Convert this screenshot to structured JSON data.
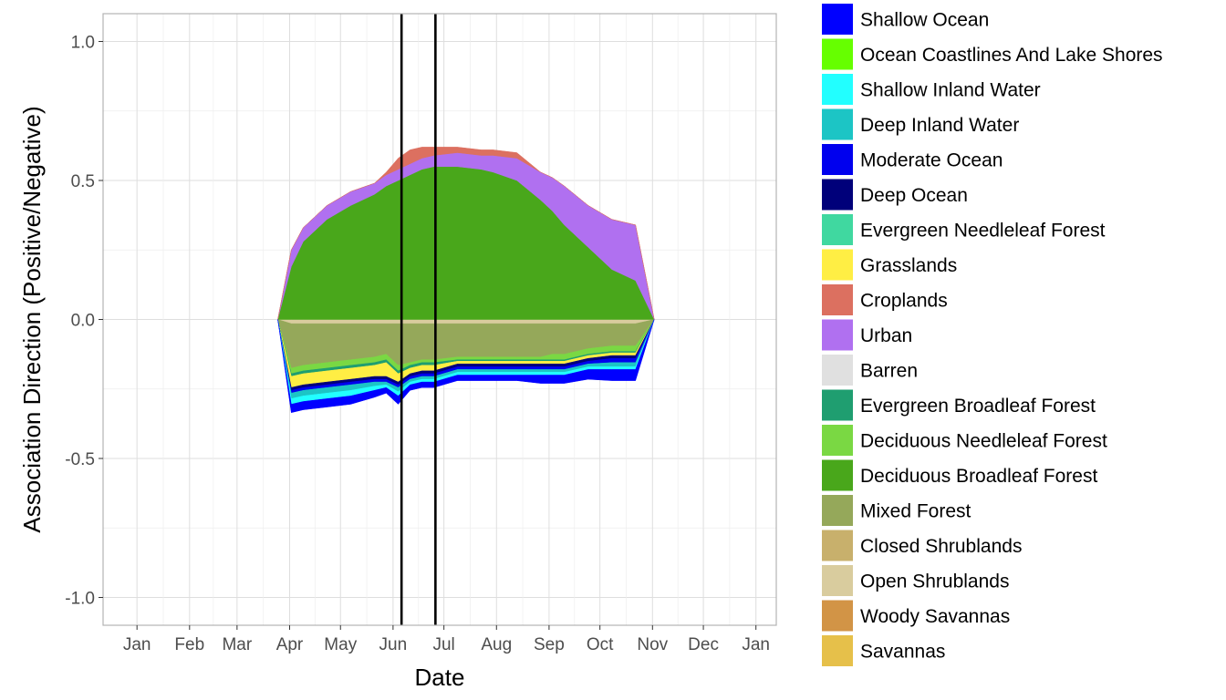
{
  "chart_data": {
    "type": "area",
    "xlabel": "Date",
    "ylabel": "Association Direction (Positive/Negative)",
    "ylim": [
      -1.1,
      1.1
    ],
    "y_ticks": [
      "-1.0",
      "-0.5",
      "0.0",
      "0.5",
      "1.0"
    ],
    "y_tick_values": [
      -1.0,
      -0.5,
      0.0,
      0.5,
      1.0
    ],
    "x_ticks": [
      "Jan",
      "Feb",
      "Mar",
      "Apr",
      "May",
      "Jun",
      "Jul",
      "Aug",
      "Sep",
      "Oct",
      "Nov",
      "Dec",
      "Jan"
    ],
    "x_tick_days": [
      0,
      31,
      59,
      90,
      120,
      151,
      181,
      212,
      243,
      273,
      304,
      334,
      365
    ],
    "x_range_days": [
      -20,
      377
    ],
    "grid": true,
    "legend_position": "right",
    "vlines_days": [
      156,
      176
    ],
    "x_days": [
      83,
      91,
      98,
      112,
      126,
      140,
      147,
      154,
      161,
      168,
      175,
      189,
      203,
      210,
      224,
      238,
      245,
      252,
      266,
      280,
      294,
      305
    ],
    "series": [
      {
        "name": "Shallow Ocean",
        "color": "#0000ff",
        "values": [
          0,
          -0.03,
          -0.03,
          -0.03,
          -0.03,
          -0.025,
          -0.02,
          -0.03,
          -0.02,
          -0.02,
          -0.02,
          -0.02,
          -0.02,
          -0.02,
          -0.02,
          -0.03,
          -0.03,
          -0.03,
          -0.035,
          -0.04,
          -0.04,
          0
        ]
      },
      {
        "name": "Ocean Coastlines And Lake Shores",
        "color": "#66ff00",
        "values": [
          0,
          0,
          0,
          0,
          0,
          0,
          0,
          0,
          0,
          0,
          0,
          0,
          0,
          0,
          0,
          0,
          0,
          0,
          0,
          0,
          0,
          0
        ]
      },
      {
        "name": "Shallow Inland Water",
        "color": "#22ffff",
        "values": [
          0,
          -0.02,
          -0.02,
          -0.02,
          -0.02,
          -0.015,
          -0.01,
          -0.015,
          -0.01,
          -0.01,
          -0.01,
          -0.01,
          -0.01,
          -0.01,
          -0.01,
          -0.01,
          -0.01,
          -0.01,
          -0.01,
          -0.01,
          -0.01,
          0
        ]
      },
      {
        "name": "Deep Inland Water",
        "color": "#1cc5c5",
        "values": [
          0,
          -0.02,
          -0.02,
          -0.02,
          -0.02,
          -0.015,
          -0.01,
          -0.015,
          -0.01,
          -0.01,
          -0.01,
          -0.01,
          -0.01,
          -0.01,
          -0.01,
          -0.01,
          -0.01,
          -0.01,
          -0.01,
          -0.015,
          -0.015,
          0
        ]
      },
      {
        "name": "Moderate Ocean",
        "color": "#0000ee",
        "values": [
          0,
          -0.01,
          -0.01,
          -0.01,
          -0.01,
          -0.01,
          -0.01,
          -0.01,
          -0.01,
          -0.01,
          -0.01,
          -0.01,
          -0.01,
          -0.01,
          -0.01,
          -0.01,
          -0.01,
          -0.01,
          -0.01,
          -0.015,
          -0.015,
          0
        ]
      },
      {
        "name": "Deep Ocean",
        "color": "#00007a",
        "values": [
          0,
          -0.01,
          -0.01,
          -0.01,
          -0.01,
          -0.01,
          -0.01,
          -0.01,
          -0.01,
          -0.01,
          -0.01,
          -0.01,
          -0.01,
          -0.01,
          -0.01,
          -0.01,
          -0.01,
          -0.01,
          -0.01,
          -0.01,
          -0.01,
          0
        ]
      },
      {
        "name": "Evergreen Needleleaf Forest",
        "color": "#40d8a0",
        "values": [
          0,
          0,
          0,
          0,
          0,
          0,
          0,
          0,
          0,
          0,
          0,
          0,
          0,
          0,
          0,
          0,
          0,
          0,
          0,
          0,
          0,
          0
        ]
      },
      {
        "name": "Grasslands",
        "color": "#ffee44",
        "values": [
          0,
          -0.04,
          -0.04,
          -0.04,
          -0.04,
          -0.04,
          -0.05,
          -0.03,
          -0.02,
          -0.02,
          -0.02,
          -0.01,
          -0.01,
          -0.01,
          -0.01,
          -0.01,
          -0.01,
          -0.01,
          -0.01,
          -0.01,
          -0.01,
          0
        ]
      },
      {
        "name": "Croplands",
        "color": "#dc7060",
        "values": [
          0,
          0,
          0,
          0,
          0,
          0,
          0.01,
          0.04,
          0.05,
          0.04,
          0.03,
          0.02,
          0.02,
          0.02,
          0.02,
          0,
          0,
          0,
          0,
          0,
          0,
          0
        ]
      },
      {
        "name": "Urban",
        "color": "#b070f0",
        "values": [
          0,
          0.06,
          0.05,
          0.05,
          0.05,
          0.04,
          0.04,
          0.04,
          0.04,
          0.04,
          0.04,
          0.05,
          0.05,
          0.06,
          0.08,
          0.1,
          0.12,
          0.14,
          0.15,
          0.18,
          0.2,
          0
        ]
      },
      {
        "name": "Barren",
        "color": "#e0e0e0",
        "values": [
          0,
          0,
          0,
          0,
          0,
          0,
          0,
          0,
          0,
          0,
          0,
          0,
          0,
          0,
          0,
          0,
          0,
          0,
          0,
          0,
          0,
          0
        ]
      },
      {
        "name": "Evergreen Broadleaf Forest",
        "color": "#1f9e70",
        "values": [
          0,
          -0.01,
          -0.01,
          -0.01,
          -0.01,
          -0.01,
          -0.01,
          -0.01,
          -0.01,
          -0.01,
          -0.01,
          -0.005,
          -0.005,
          -0.005,
          -0.005,
          -0.005,
          -0.005,
          -0.005,
          -0.005,
          -0.005,
          -0.005,
          0
        ]
      },
      {
        "name": "Deciduous Needleleaf Forest",
        "color": "#7ad843",
        "values": [
          0,
          -0.02,
          -0.02,
          -0.02,
          -0.02,
          -0.02,
          -0.02,
          -0.02,
          -0.01,
          -0.01,
          -0.01,
          -0.01,
          -0.01,
          -0.01,
          -0.01,
          -0.01,
          -0.02,
          -0.02,
          -0.02,
          -0.02,
          -0.02,
          0
        ]
      },
      {
        "name": "Deciduous Broadleaf Forest",
        "color": "#49a71b",
        "values": [
          0,
          0.19,
          0.28,
          0.36,
          0.41,
          0.45,
          0.48,
          0.5,
          0.52,
          0.54,
          0.55,
          0.55,
          0.54,
          0.53,
          0.5,
          0.43,
          0.39,
          0.34,
          0.26,
          0.18,
          0.14,
          0
        ]
      },
      {
        "name": "Mixed Forest",
        "color": "#95a85a",
        "values": [
          0,
          -0.16,
          -0.15,
          -0.14,
          -0.13,
          -0.12,
          -0.11,
          -0.15,
          -0.14,
          -0.13,
          -0.13,
          -0.12,
          -0.12,
          -0.12,
          -0.12,
          -0.12,
          -0.11,
          -0.11,
          -0.09,
          -0.08,
          -0.08,
          0
        ]
      },
      {
        "name": "Closed Shrublands",
        "color": "#c8b06c",
        "values": [
          0,
          0,
          0,
          0,
          0,
          0,
          0,
          0,
          0,
          0,
          0,
          0,
          0,
          0,
          0,
          0,
          0,
          0,
          0,
          0,
          0,
          0
        ]
      },
      {
        "name": "Open Shrublands",
        "color": "#d9cc9e",
        "values": [
          0,
          -0.015,
          -0.015,
          -0.015,
          -0.015,
          -0.015,
          -0.015,
          -0.015,
          -0.015,
          -0.015,
          -0.015,
          -0.015,
          -0.015,
          -0.015,
          -0.015,
          -0.015,
          -0.015,
          -0.015,
          -0.015,
          -0.015,
          -0.015,
          0
        ]
      },
      {
        "name": "Woody Savannas",
        "color": "#d29446",
        "values": [
          0,
          0,
          0,
          0,
          0,
          0,
          0,
          0,
          0,
          0,
          0,
          0,
          0,
          0,
          0,
          0,
          0,
          0,
          0,
          0,
          0,
          0
        ]
      },
      {
        "name": "Savannas",
        "color": "#e6c04a",
        "values": [
          0,
          0,
          0,
          0,
          0,
          0,
          0,
          0,
          0,
          0,
          0,
          0,
          0,
          0,
          0,
          0,
          0,
          0,
          0,
          0,
          0,
          0
        ]
      }
    ]
  }
}
